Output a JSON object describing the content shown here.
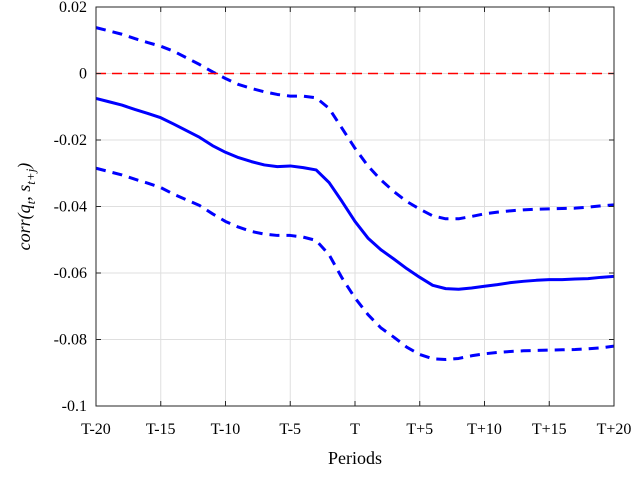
{
  "chart_data": {
    "type": "line",
    "title": "",
    "xlabel": "Periods",
    "ylabel": "corr(q_t, s_{t+j})",
    "ylabel_parts": {
      "base": "corr(q",
      "sub1": "t",
      "sep": ", s",
      "sub2": "t+j",
      "close": ")"
    },
    "x": [
      -20,
      -19,
      -18,
      -17,
      -16,
      -15,
      -14,
      -13,
      -12,
      -11,
      -10,
      -9,
      -8,
      -7,
      -6,
      -5,
      -4,
      -3,
      -2,
      -1,
      0,
      1,
      2,
      3,
      4,
      5,
      6,
      7,
      8,
      9,
      10,
      11,
      12,
      13,
      14,
      15,
      16,
      17,
      18,
      19,
      20
    ],
    "xticks": [
      -20,
      -15,
      -10,
      -5,
      0,
      5,
      10,
      15,
      20
    ],
    "xtick_labels": [
      "T-20",
      "T-15",
      "T-10",
      "T-5",
      "T",
      "T+5",
      "T+10",
      "T+15",
      "T+20"
    ],
    "ylim": [
      -0.1,
      0.02
    ],
    "yticks": [
      -0.1,
      -0.08,
      -0.06,
      -0.04,
      -0.02,
      0,
      0.02
    ],
    "ytick_labels": [
      "-0.1",
      "-0.08",
      "-0.06",
      "-0.04",
      "-0.02",
      "0",
      "0.02"
    ],
    "grid": true,
    "series": [
      {
        "style": "solid",
        "color": "#0000ff",
        "values": [
          -0.0075,
          -0.0085,
          -0.0095,
          -0.0108,
          -0.012,
          -0.0133,
          -0.0152,
          -0.0172,
          -0.0192,
          -0.0217,
          -0.0237,
          -0.0253,
          -0.0265,
          -0.0275,
          -0.028,
          -0.0278,
          -0.0283,
          -0.029,
          -0.0328,
          -0.0385,
          -0.0445,
          -0.0495,
          -0.053,
          -0.0558,
          -0.0587,
          -0.0613,
          -0.0637,
          -0.0647,
          -0.0649,
          -0.0645,
          -0.064,
          -0.0635,
          -0.0629,
          -0.0625,
          -0.0622,
          -0.062,
          -0.062,
          -0.0618,
          -0.0617,
          -0.0613,
          -0.061
        ]
      },
      {
        "style": "dashed",
        "color": "#0000ff",
        "values": [
          0.0138,
          0.0128,
          0.0118,
          0.0105,
          0.0093,
          0.0082,
          0.0067,
          0.0047,
          0.0027,
          0.0005,
          -0.0015,
          -0.0033,
          -0.0045,
          -0.0055,
          -0.0063,
          -0.0068,
          -0.0068,
          -0.0073,
          -0.0105,
          -0.0165,
          -0.0225,
          -0.0278,
          -0.032,
          -0.0355,
          -0.0385,
          -0.0408,
          -0.0428,
          -0.0437,
          -0.0437,
          -0.043,
          -0.0422,
          -0.0417,
          -0.0413,
          -0.041,
          -0.0408,
          -0.0407,
          -0.0406,
          -0.0405,
          -0.0402,
          -0.0398,
          -0.0395
        ]
      },
      {
        "style": "dashed",
        "color": "#0000ff",
        "values": [
          -0.0285,
          -0.0295,
          -0.0305,
          -0.0318,
          -0.033,
          -0.0343,
          -0.0363,
          -0.038,
          -0.0397,
          -0.0422,
          -0.0445,
          -0.0462,
          -0.0475,
          -0.0483,
          -0.0487,
          -0.0487,
          -0.0492,
          -0.0502,
          -0.0545,
          -0.0615,
          -0.0675,
          -0.0725,
          -0.0765,
          -0.0793,
          -0.0823,
          -0.0845,
          -0.0858,
          -0.086,
          -0.0857,
          -0.0849,
          -0.0843,
          -0.0839,
          -0.0836,
          -0.0834,
          -0.0833,
          -0.0832,
          -0.0831,
          -0.083,
          -0.0828,
          -0.0825,
          -0.082
        ]
      },
      {
        "style": "dashed",
        "color": "#ff0000",
        "values": [
          0,
          0,
          0,
          0,
          0,
          0,
          0,
          0,
          0,
          0,
          0,
          0,
          0,
          0,
          0,
          0,
          0,
          0,
          0,
          0,
          0,
          0,
          0,
          0,
          0,
          0,
          0,
          0,
          0,
          0,
          0,
          0,
          0,
          0,
          0,
          0,
          0,
          0,
          0,
          0,
          0
        ]
      }
    ]
  }
}
